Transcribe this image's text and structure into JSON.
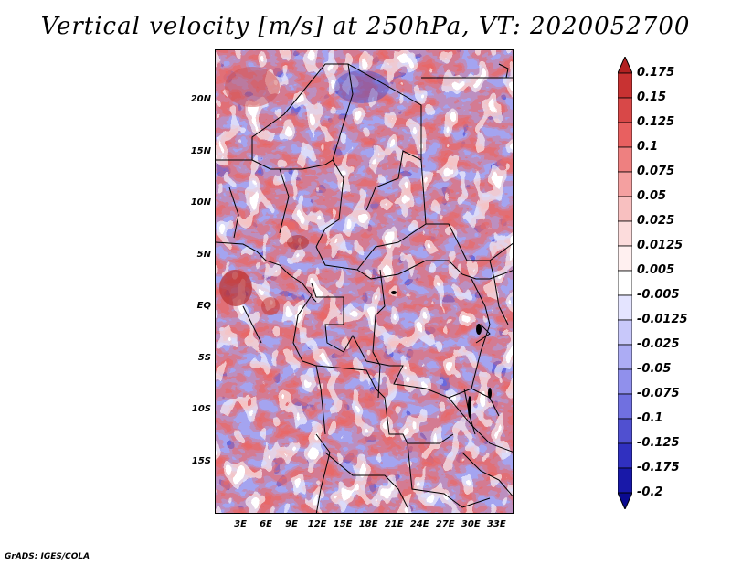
{
  "title": "Vertical velocity [m/s] at 250hPa, VT: 2020052700",
  "credit": "GrADS: IGES/COLA",
  "map": {
    "projection": "lat-lon",
    "lon_range": [
      0,
      35
    ],
    "lat_range": [
      -20,
      25
    ],
    "lat_labels": [
      {
        "lat": 20,
        "text": "20N"
      },
      {
        "lat": 15,
        "text": "15N"
      },
      {
        "lat": 10,
        "text": "10N"
      },
      {
        "lat": 5,
        "text": "5N"
      },
      {
        "lat": 0,
        "text": "EQ"
      },
      {
        "lat": -5,
        "text": "5S"
      },
      {
        "lat": -10,
        "text": "10S"
      },
      {
        "lat": -15,
        "text": "15S"
      }
    ],
    "lon_labels": [
      {
        "lon": 3,
        "text": "3E"
      },
      {
        "lon": 6,
        "text": "6E"
      },
      {
        "lon": 9,
        "text": "9E"
      },
      {
        "lon": 12,
        "text": "12E"
      },
      {
        "lon": 15,
        "text": "15E"
      },
      {
        "lon": 18,
        "text": "18E"
      },
      {
        "lon": 21,
        "text": "21E"
      },
      {
        "lon": 24,
        "text": "24E"
      },
      {
        "lon": 27,
        "text": "27E"
      },
      {
        "lon": 30,
        "text": "30E"
      },
      {
        "lon": 33,
        "text": "33E"
      }
    ]
  },
  "colorbar": {
    "labels": [
      "0.175",
      "0.15",
      "0.125",
      "0.1",
      "0.075",
      "0.05",
      "0.025",
      "0.0125",
      "0.005",
      "-0.005",
      "-0.0125",
      "-0.025",
      "-0.05",
      "-0.075",
      "-0.1",
      "-0.125",
      "-0.175",
      "-0.2"
    ],
    "colors": [
      "#b22222",
      "#c83232",
      "#d84848",
      "#e86060",
      "#ee8080",
      "#f4a0a0",
      "#f8c0c0",
      "#fcdcdc",
      "#fff0f0",
      "#ffffff",
      "#e4e4ff",
      "#c8c8fa",
      "#acacf4",
      "#9090ec",
      "#7070e0",
      "#5050d0",
      "#3030c0",
      "#1818a8",
      "#0a0a90"
    ]
  }
}
